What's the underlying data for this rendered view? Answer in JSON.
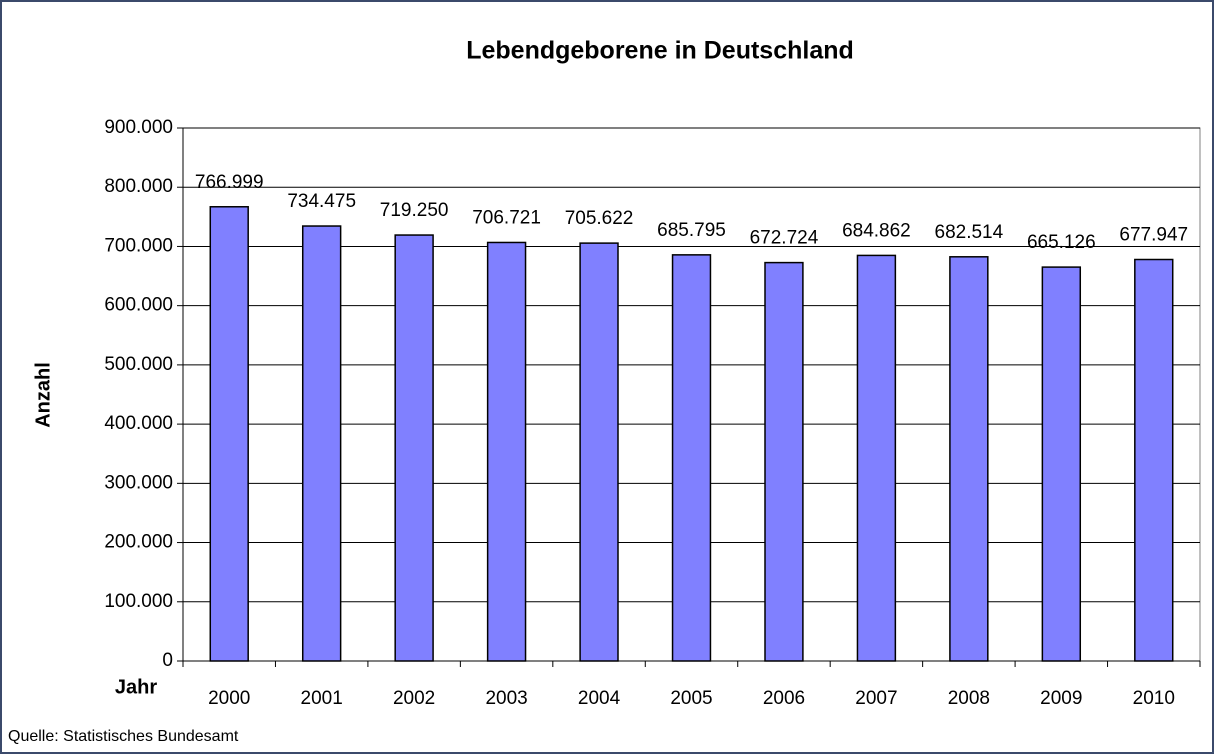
{
  "chart_data": {
    "type": "bar",
    "title": "Lebendgeborene in Deutschland",
    "x_label": "Jahr",
    "y_label": "Anzahl",
    "source": "Quelle: Statistisches Bundesamt",
    "categories": [
      "2000",
      "2001",
      "2002",
      "2003",
      "2004",
      "2005",
      "2006",
      "2007",
      "2008",
      "2009",
      "2010"
    ],
    "values": [
      766999,
      734475,
      719250,
      706721,
      705622,
      685795,
      672724,
      684862,
      682514,
      665126,
      677947
    ],
    "value_labels": [
      "766.999",
      "734.475",
      "719.250",
      "706.721",
      "705.622",
      "685.795",
      "672.724",
      "684.862",
      "682.514",
      "665.126",
      "677.947"
    ],
    "color": "#8080ff",
    "ylim": [
      0,
      900000
    ],
    "yticks": [
      0,
      {
        "value": 100000,
        "label": "100.000"
      },
      {
        "value": 200000,
        "label": "200.000"
      },
      {
        "value": 300000,
        "label": "300.000"
      },
      {
        "value": 400000,
        "label": "400.000"
      },
      {
        "value": 500000,
        "label": "500.000"
      },
      {
        "value": 600000,
        "label": "600.000"
      },
      {
        "value": 700000,
        "label": "700.000"
      },
      {
        "value": 800000,
        "label": "800.000"
      },
      {
        "value": 900000,
        "label": "900.000"
      }
    ],
    "grid": true
  }
}
